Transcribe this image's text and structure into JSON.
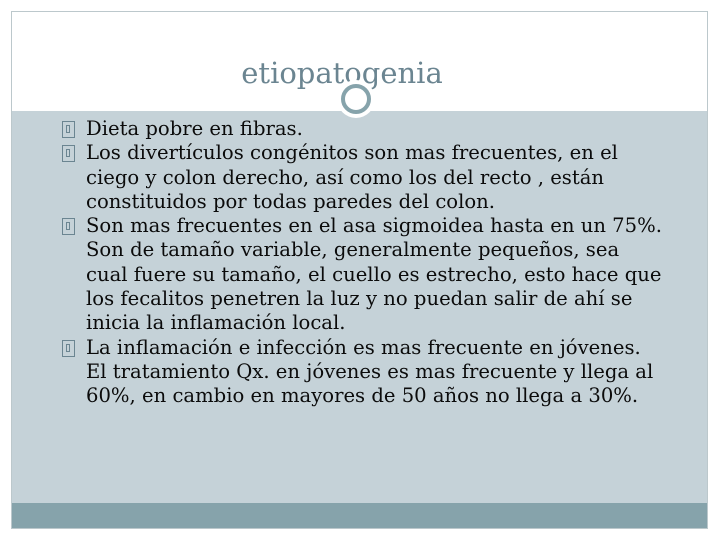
{
  "slide": {
    "title": "etiopatogenia",
    "bullets": [
      "Dieta pobre en fibras.",
      "Los divertículos congénitos son mas frecuentes, en el ciego y colon derecho, así como los del recto , están constituidos por todas paredes del colon.",
      "Son mas frecuentes en el asa sigmoidea hasta en un 75%. Son de tamaño variable, generalmente pequeños, sea cual fuere su tamaño, el cuello es estrecho, esto hace que los fecalitos penetren la luz y no puedan salir de ahí se inicia la inflamación local.",
      "La inflamación e infección es mas frecuente en jóvenes. El tratamiento Qx. en jóvenes es mas frecuente y llega al 60%, en cambio en mayores de 50 años no llega a 30%."
    ]
  },
  "colors": {
    "title": "#6b8591",
    "body_background": "#c5d2d8",
    "accent": "#86a3ab",
    "text": "#0b0b0b"
  }
}
